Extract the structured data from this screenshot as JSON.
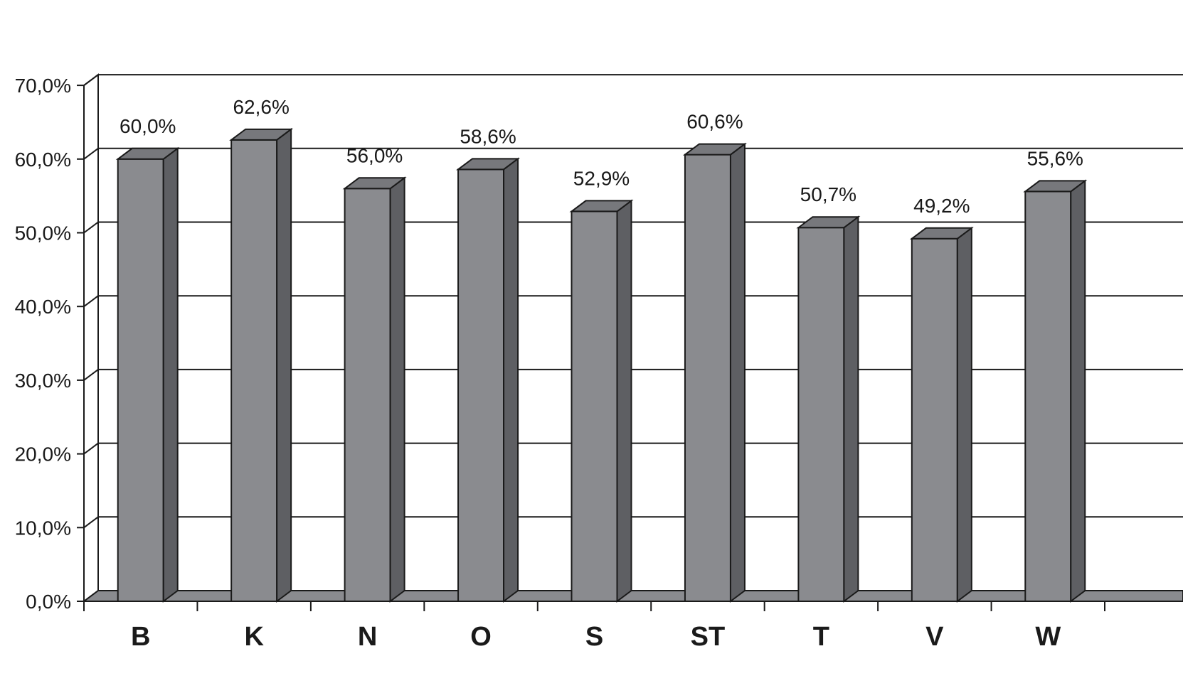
{
  "chart_data": {
    "type": "bar",
    "categories": [
      "B",
      "K",
      "N",
      "O",
      "S",
      "ST",
      "T",
      "V",
      "W"
    ],
    "values": [
      60.0,
      62.6,
      56.0,
      58.6,
      52.9,
      60.6,
      50.7,
      49.2,
      55.6
    ],
    "data_labels": [
      "60,0%",
      "62,6%",
      "56,0%",
      "58,6%",
      "52,9%",
      "60,6%",
      "50,7%",
      "49,2%",
      "55,6%"
    ],
    "y_ticks": [
      0,
      10,
      20,
      30,
      40,
      50,
      60,
      70
    ],
    "y_tick_labels": [
      "0,0%",
      "10,0%",
      "20,0%",
      "30,0%",
      "40,0%",
      "50,0%",
      "60,0%",
      "70,0%"
    ],
    "ylim": [
      0,
      70
    ],
    "grid": true,
    "style": "3d-column",
    "colors": {
      "bar_front": "#8a8b8f",
      "bar_top": "#77787c",
      "bar_side": "#5e5f63",
      "floor": "#8a8b8f",
      "outline": "#1a1a1a",
      "grid": "#1a1a1a"
    }
  }
}
